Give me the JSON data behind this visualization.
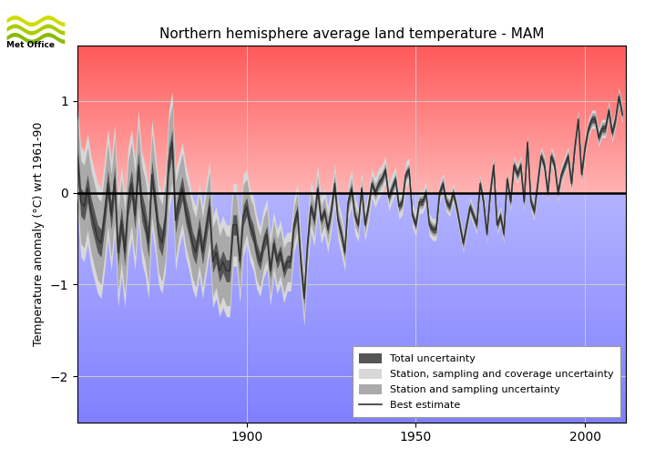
{
  "title": "Northern hemisphere average land temperature - MAM",
  "ylabel": "Temperature anomaly (°C) wrt 1961-90",
  "xlim": [
    1850,
    2012
  ],
  "ylim": [
    -2.5,
    1.6
  ],
  "yticks": [
    -2,
    -1,
    0,
    1
  ],
  "xticks": [
    1900,
    1950,
    2000
  ],
  "grid_color": "#cccccc",
  "years": [
    1850,
    1851,
    1852,
    1853,
    1854,
    1855,
    1856,
    1857,
    1858,
    1859,
    1860,
    1861,
    1862,
    1863,
    1864,
    1865,
    1866,
    1867,
    1868,
    1869,
    1870,
    1871,
    1872,
    1873,
    1874,
    1875,
    1876,
    1877,
    1878,
    1879,
    1880,
    1881,
    1882,
    1883,
    1884,
    1885,
    1886,
    1887,
    1888,
    1889,
    1890,
    1891,
    1892,
    1893,
    1894,
    1895,
    1896,
    1897,
    1898,
    1899,
    1900,
    1901,
    1902,
    1903,
    1904,
    1905,
    1906,
    1907,
    1908,
    1909,
    1910,
    1911,
    1912,
    1913,
    1914,
    1915,
    1916,
    1917,
    1918,
    1919,
    1920,
    1921,
    1922,
    1923,
    1924,
    1925,
    1926,
    1927,
    1928,
    1929,
    1930,
    1931,
    1932,
    1933,
    1934,
    1935,
    1936,
    1937,
    1938,
    1939,
    1940,
    1941,
    1942,
    1943,
    1944,
    1945,
    1946,
    1947,
    1948,
    1949,
    1950,
    1951,
    1952,
    1953,
    1954,
    1955,
    1956,
    1957,
    1958,
    1959,
    1960,
    1961,
    1962,
    1963,
    1964,
    1965,
    1966,
    1967,
    1968,
    1969,
    1970,
    1971,
    1972,
    1973,
    1974,
    1975,
    1976,
    1977,
    1978,
    1979,
    1980,
    1981,
    1982,
    1983,
    1984,
    1985,
    1986,
    1987,
    1988,
    1989,
    1990,
    1991,
    1992,
    1993,
    1994,
    1995,
    1996,
    1997,
    1998,
    1999,
    2000,
    2001,
    2002,
    2003,
    2004,
    2005,
    2006,
    2007,
    2008,
    2009,
    2010,
    2011
  ],
  "best_estimate": [
    0.4,
    -0.1,
    -0.15,
    0.05,
    -0.2,
    -0.35,
    -0.5,
    -0.55,
    -0.25,
    0.1,
    -0.25,
    0.15,
    -0.65,
    -0.3,
    -0.65,
    -0.1,
    0.1,
    -0.25,
    0.3,
    -0.15,
    -0.3,
    -0.55,
    0.2,
    -0.1,
    -0.45,
    -0.55,
    -0.3,
    0.35,
    0.55,
    -0.3,
    -0.1,
    0.05,
    -0.2,
    -0.35,
    -0.55,
    -0.65,
    -0.4,
    -0.65,
    -0.4,
    -0.15,
    -0.75,
    -0.65,
    -0.85,
    -0.75,
    -0.85,
    -0.85,
    -0.35,
    -0.35,
    -0.75,
    -0.25,
    -0.15,
    -0.35,
    -0.45,
    -0.65,
    -0.75,
    -0.55,
    -0.45,
    -0.85,
    -0.55,
    -0.75,
    -0.65,
    -0.85,
    -0.75,
    -0.75,
    -0.35,
    -0.2,
    -0.75,
    -1.15,
    -0.55,
    -0.15,
    -0.3,
    0.05,
    -0.3,
    -0.2,
    -0.4,
    -0.2,
    0.1,
    -0.3,
    -0.45,
    -0.65,
    -0.1,
    0.05,
    -0.25,
    -0.35,
    0.05,
    -0.35,
    -0.15,
    0.1,
    0.0,
    0.1,
    0.15,
    0.25,
    -0.05,
    0.05,
    0.15,
    -0.15,
    -0.1,
    0.2,
    0.25,
    -0.25,
    -0.35,
    -0.1,
    -0.1,
    0.0,
    -0.35,
    -0.4,
    -0.4,
    0.0,
    0.1,
    -0.1,
    -0.15,
    0.0,
    -0.15,
    -0.35,
    -0.55,
    -0.35,
    -0.15,
    -0.25,
    -0.35,
    0.1,
    -0.1,
    -0.45,
    0.0,
    0.3,
    -0.35,
    -0.25,
    -0.45,
    0.15,
    -0.1,
    0.3,
    0.2,
    0.3,
    -0.1,
    0.55,
    -0.1,
    -0.2,
    0.1,
    0.4,
    0.3,
    0.0,
    0.4,
    0.3,
    0.0,
    0.2,
    0.3,
    0.4,
    0.1,
    0.5,
    0.8,
    0.2,
    0.5,
    0.7,
    0.8,
    0.8,
    0.6,
    0.7,
    0.7,
    0.9,
    0.65,
    0.8,
    1.05,
    0.85
  ],
  "total_uncert_half_width": [
    0.6,
    0.6,
    0.6,
    0.6,
    0.6,
    0.6,
    0.6,
    0.6,
    0.6,
    0.6,
    0.6,
    0.6,
    0.6,
    0.6,
    0.6,
    0.6,
    0.6,
    0.6,
    0.6,
    0.6,
    0.6,
    0.6,
    0.6,
    0.55,
    0.55,
    0.55,
    0.55,
    0.55,
    0.55,
    0.55,
    0.5,
    0.5,
    0.5,
    0.5,
    0.5,
    0.5,
    0.5,
    0.5,
    0.5,
    0.5,
    0.5,
    0.5,
    0.5,
    0.5,
    0.5,
    0.5,
    0.45,
    0.45,
    0.45,
    0.45,
    0.4,
    0.4,
    0.4,
    0.4,
    0.38,
    0.38,
    0.38,
    0.38,
    0.35,
    0.35,
    0.35,
    0.35,
    0.32,
    0.32,
    0.3,
    0.3,
    0.3,
    0.3,
    0.28,
    0.28,
    0.28,
    0.25,
    0.25,
    0.25,
    0.25,
    0.22,
    0.22,
    0.22,
    0.22,
    0.2,
    0.2,
    0.2,
    0.2,
    0.18,
    0.18,
    0.18,
    0.18,
    0.16,
    0.16,
    0.16,
    0.15,
    0.15,
    0.15,
    0.15,
    0.14,
    0.14,
    0.14,
    0.14,
    0.13,
    0.13,
    0.13,
    0.13,
    0.12,
    0.12,
    0.12,
    0.12,
    0.12,
    0.11,
    0.11,
    0.11,
    0.11,
    0.11,
    0.1,
    0.1,
    0.1,
    0.1,
    0.1,
    0.1,
    0.1,
    0.1,
    0.1,
    0.1,
    0.1,
    0.1,
    0.1,
    0.1,
    0.1,
    0.1,
    0.1,
    0.1,
    0.1,
    0.1,
    0.1,
    0.1,
    0.1,
    0.1,
    0.1,
    0.1,
    0.1,
    0.1,
    0.1,
    0.1,
    0.1,
    0.1,
    0.1,
    0.1,
    0.1,
    0.1,
    0.1,
    0.1,
    0.1,
    0.1,
    0.1,
    0.1,
    0.1,
    0.1,
    0.1,
    0.1,
    0.1,
    0.1,
    0.1,
    0.1
  ],
  "coverage_uncert_half_width": [
    0.45,
    0.45,
    0.45,
    0.45,
    0.45,
    0.45,
    0.45,
    0.45,
    0.45,
    0.45,
    0.45,
    0.45,
    0.45,
    0.45,
    0.45,
    0.45,
    0.45,
    0.45,
    0.45,
    0.45,
    0.45,
    0.45,
    0.45,
    0.42,
    0.42,
    0.42,
    0.42,
    0.42,
    0.42,
    0.42,
    0.38,
    0.38,
    0.38,
    0.38,
    0.38,
    0.38,
    0.38,
    0.38,
    0.38,
    0.38,
    0.38,
    0.38,
    0.38,
    0.38,
    0.38,
    0.38,
    0.34,
    0.34,
    0.34,
    0.34,
    0.3,
    0.3,
    0.3,
    0.3,
    0.28,
    0.28,
    0.28,
    0.28,
    0.25,
    0.25,
    0.25,
    0.25,
    0.22,
    0.22,
    0.2,
    0.2,
    0.2,
    0.2,
    0.18,
    0.18,
    0.18,
    0.15,
    0.15,
    0.15,
    0.15,
    0.13,
    0.13,
    0.13,
    0.13,
    0.12,
    0.12,
    0.12,
    0.12,
    0.1,
    0.1,
    0.1,
    0.1,
    0.09,
    0.09,
    0.09,
    0.08,
    0.08,
    0.08,
    0.08,
    0.07,
    0.07,
    0.07,
    0.07,
    0.07,
    0.07,
    0.07,
    0.07,
    0.07,
    0.07,
    0.07,
    0.07,
    0.07,
    0.07,
    0.07,
    0.07,
    0.07,
    0.07,
    0.07,
    0.07,
    0.07,
    0.07,
    0.07,
    0.07,
    0.07,
    0.07,
    0.07,
    0.07,
    0.07,
    0.07,
    0.07,
    0.07,
    0.07,
    0.07,
    0.07,
    0.07,
    0.07,
    0.07,
    0.07,
    0.07,
    0.07,
    0.07,
    0.07,
    0.07,
    0.07,
    0.07,
    0.07,
    0.07,
    0.07,
    0.07,
    0.07,
    0.07,
    0.07,
    0.07,
    0.07,
    0.07,
    0.07,
    0.07,
    0.07,
    0.07,
    0.07,
    0.07,
    0.07,
    0.07,
    0.07,
    0.07,
    0.07,
    0.07
  ],
  "station_uncert_half_width": [
    0.15,
    0.15,
    0.15,
    0.15,
    0.15,
    0.15,
    0.15,
    0.15,
    0.15,
    0.15,
    0.15,
    0.15,
    0.15,
    0.15,
    0.15,
    0.15,
    0.15,
    0.15,
    0.15,
    0.15,
    0.15,
    0.15,
    0.15,
    0.14,
    0.14,
    0.14,
    0.14,
    0.14,
    0.14,
    0.14,
    0.13,
    0.13,
    0.13,
    0.13,
    0.13,
    0.13,
    0.13,
    0.13,
    0.13,
    0.13,
    0.12,
    0.12,
    0.12,
    0.12,
    0.12,
    0.12,
    0.11,
    0.11,
    0.11,
    0.11,
    0.1,
    0.1,
    0.1,
    0.1,
    0.09,
    0.09,
    0.09,
    0.09,
    0.08,
    0.08,
    0.08,
    0.08,
    0.07,
    0.07,
    0.07,
    0.07,
    0.07,
    0.07,
    0.06,
    0.06,
    0.06,
    0.05,
    0.05,
    0.05,
    0.05,
    0.05,
    0.05,
    0.05,
    0.05,
    0.05,
    0.05,
    0.05,
    0.05,
    0.04,
    0.04,
    0.04,
    0.04,
    0.04,
    0.04,
    0.04,
    0.04,
    0.04,
    0.04,
    0.04,
    0.04,
    0.04,
    0.04,
    0.04,
    0.04,
    0.04,
    0.04,
    0.04,
    0.04,
    0.04,
    0.04,
    0.04,
    0.04,
    0.04,
    0.04,
    0.04,
    0.04,
    0.04,
    0.04,
    0.04,
    0.04,
    0.04,
    0.04,
    0.04,
    0.04,
    0.04,
    0.04,
    0.04,
    0.04,
    0.04,
    0.04,
    0.04,
    0.04,
    0.04,
    0.04,
    0.04,
    0.04,
    0.04,
    0.04,
    0.04,
    0.04,
    0.04,
    0.04,
    0.04,
    0.04,
    0.04,
    0.04,
    0.04,
    0.04,
    0.04,
    0.04,
    0.04,
    0.04,
    0.04,
    0.04,
    0.04,
    0.04,
    0.04,
    0.04,
    0.04,
    0.04,
    0.04,
    0.04,
    0.04,
    0.04,
    0.04,
    0.04,
    0.04
  ],
  "legend_labels": [
    "Total uncertainty",
    "Station, sampling and coverage uncertainty",
    "Station and sampling uncertainty",
    "Best estimate"
  ],
  "line_color": "#333333",
  "zero_line_color": "#000000",
  "figsize": [
    7.08,
    5.04
  ],
  "dpi": 100
}
